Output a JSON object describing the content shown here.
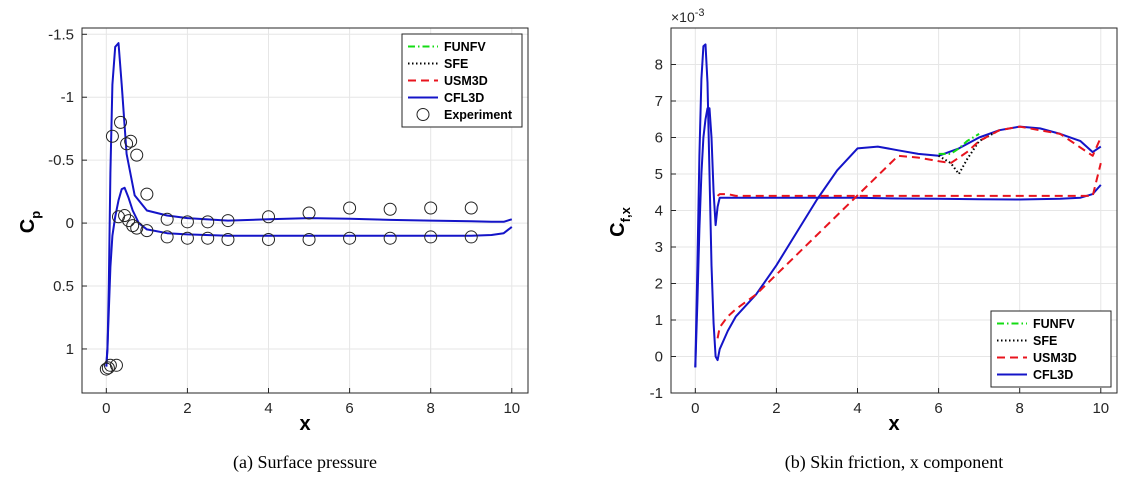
{
  "chart_data": [
    {
      "type": "line",
      "caption": "(a) Surface pressure",
      "xlabel": "x",
      "ylabel_main": "C",
      "ylabel_sub": "p",
      "xlim": [
        -0.6,
        10.4
      ],
      "ylim": [
        1.35,
        -1.55
      ],
      "y_reversed": true,
      "xticks": [
        0,
        2,
        4,
        6,
        8,
        10
      ],
      "xtick_labels": [
        "0",
        "2",
        "4",
        "6",
        "8",
        "10"
      ],
      "yticks": [
        -1.5,
        -1,
        -0.5,
        0,
        0.5,
        1
      ],
      "ytick_labels": [
        "-1.5",
        "-1",
        "-0.5",
        "0",
        "0.5",
        "1"
      ],
      "grid": true,
      "legend_position": "top-right",
      "legend": [
        "FUNFV",
        "SFE",
        "USM3D",
        "CFL3D",
        "Experiment"
      ],
      "series": [
        {
          "name": "CFL3D",
          "color": "#1414c8",
          "dash": "solid",
          "x": [
            0.0,
            0.03,
            0.06,
            0.1,
            0.15,
            0.22,
            0.3,
            0.38,
            0.5,
            0.7,
            1.0,
            1.5,
            2.0,
            3.0,
            4.0,
            5.0,
            6.0,
            7.0,
            8.0,
            9.0,
            9.5,
            9.8,
            10.0
          ],
          "y": [
            1.14,
            1.0,
            0.5,
            -0.4,
            -1.1,
            -1.4,
            -1.43,
            -1.1,
            -0.55,
            -0.22,
            -0.1,
            -0.06,
            -0.04,
            -0.02,
            -0.03,
            -0.04,
            -0.035,
            -0.025,
            -0.02,
            -0.015,
            -0.01,
            -0.01,
            -0.03
          ]
        },
        {
          "name": "CFL3D",
          "color": "#1414c8",
          "dash": "solid",
          "x": [
            0.0,
            0.03,
            0.06,
            0.1,
            0.15,
            0.22,
            0.3,
            0.38,
            0.45,
            0.55,
            0.65,
            0.8,
            1.0,
            1.5,
            2.0,
            3.0,
            4.0,
            5.0,
            6.0,
            7.0,
            8.0,
            9.0,
            9.5,
            9.8,
            10.0
          ],
          "y": [
            1.14,
            0.98,
            0.7,
            0.35,
            0.1,
            -0.05,
            -0.18,
            -0.27,
            -0.28,
            -0.2,
            -0.1,
            0.0,
            0.05,
            0.08,
            0.09,
            0.1,
            0.1,
            0.1,
            0.1,
            0.1,
            0.1,
            0.1,
            0.095,
            0.08,
            0.03
          ]
        }
      ],
      "experiment": {
        "name": "Experiment",
        "x": [
          0.0,
          0.05,
          0.15,
          0.25,
          0.35,
          0.5,
          0.6,
          0.75,
          1.0,
          1.5,
          2.0,
          2.5,
          3.0,
          4.0,
          5.0,
          6.0,
          7.0,
          8.0,
          9.0,
          0.1,
          0.3,
          0.45,
          0.55,
          0.65,
          0.75,
          1.0,
          1.5,
          2.0,
          2.5,
          3.0,
          4.0,
          5.0,
          6.0,
          7.0,
          8.0,
          9.0
        ],
        "y": [
          1.16,
          1.15,
          -0.69,
          1.13,
          -0.8,
          -0.63,
          -0.65,
          -0.54,
          -0.23,
          -0.03,
          -0.01,
          -0.01,
          -0.02,
          -0.05,
          -0.08,
          -0.12,
          -0.11,
          -0.12,
          -0.12,
          1.13,
          -0.05,
          -0.06,
          -0.02,
          0.02,
          0.04,
          0.06,
          0.11,
          0.12,
          0.12,
          0.13,
          0.13,
          0.13,
          0.12,
          0.12,
          0.11,
          0.11
        ]
      }
    },
    {
      "type": "line",
      "caption": "(b) Skin friction, x component",
      "xlabel": "x",
      "ylabel_main": "C",
      "ylabel_sub": "f,x",
      "multiplier": "×10",
      "multiplier_exp": "-3",
      "xlim": [
        -0.6,
        10.4
      ],
      "ylim": [
        -1,
        9
      ],
      "xticks": [
        0,
        2,
        4,
        6,
        8,
        10
      ],
      "xtick_labels": [
        "0",
        "2",
        "4",
        "6",
        "8",
        "10"
      ],
      "yticks": [
        -1,
        0,
        1,
        2,
        3,
        4,
        5,
        6,
        7,
        8
      ],
      "ytick_labels": [
        "-1",
        "0",
        "1",
        "2",
        "3",
        "4",
        "5",
        "6",
        "7",
        "8"
      ],
      "grid": true,
      "legend_position": "bottom-right",
      "legend": [
        "FUNFV",
        "SFE",
        "USM3D",
        "CFL3D"
      ],
      "series": [
        {
          "name": "CFL3D",
          "color": "#1414c8",
          "dash": "solid",
          "x": [
            0.0,
            0.05,
            0.1,
            0.15,
            0.2,
            0.25,
            0.3,
            0.35,
            0.4,
            0.45,
            0.5,
            0.55,
            0.6,
            0.8,
            1.0,
            1.5,
            2.0,
            2.5,
            3.0,
            3.5,
            4.0,
            4.5,
            5.0,
            5.5,
            6.0,
            6.5,
            7.0,
            7.5,
            8.0,
            8.5,
            9.0,
            9.5,
            9.8,
            10.0
          ],
          "y": [
            -0.3,
            2.5,
            5.5,
            7.6,
            8.5,
            8.55,
            7.5,
            5.0,
            2.5,
            0.9,
            0.0,
            -0.1,
            0.2,
            0.7,
            1.1,
            1.7,
            2.5,
            3.4,
            4.3,
            5.1,
            5.7,
            5.75,
            5.65,
            5.55,
            5.5,
            5.7,
            6.0,
            6.2,
            6.3,
            6.25,
            6.1,
            5.9,
            5.6,
            5.75
          ]
        },
        {
          "name": "CFL3D",
          "color": "#1414c8",
          "dash": "solid",
          "x": [
            0.0,
            0.05,
            0.1,
            0.15,
            0.2,
            0.25,
            0.3,
            0.35,
            0.4,
            0.45,
            0.5,
            0.55,
            0.6,
            0.8,
            1.0,
            2.0,
            3.0,
            4.0,
            5.0,
            6.0,
            7.0,
            8.0,
            9.0,
            9.5,
            9.8,
            10.0
          ],
          "y": [
            -0.3,
            1.5,
            3.5,
            5.0,
            6.0,
            6.5,
            6.8,
            6.8,
            6.0,
            4.5,
            3.6,
            4.1,
            4.35,
            4.35,
            4.35,
            4.35,
            4.35,
            4.35,
            4.33,
            4.32,
            4.31,
            4.3,
            4.32,
            4.35,
            4.45,
            4.7
          ]
        },
        {
          "name": "SFE",
          "color": "#000000",
          "dash": "dotted",
          "x": [
            6.0,
            6.3,
            6.5,
            6.7,
            7.0,
            7.5
          ],
          "y": [
            5.5,
            5.3,
            5.0,
            5.4,
            5.9,
            6.2
          ]
        },
        {
          "name": "USM3D",
          "color": "#e8141e",
          "dash": "dashed",
          "x": [
            0.55,
            0.6,
            0.8,
            1.0,
            1.5,
            5.0,
            5.5,
            6.0,
            6.3,
            6.5,
            6.7,
            7.0,
            7.5,
            8.0,
            9.0,
            9.8,
            10.0
          ],
          "y": [
            0.5,
            0.8,
            1.1,
            1.3,
            1.7,
            5.5,
            5.45,
            5.35,
            5.3,
            5.45,
            5.6,
            5.9,
            6.2,
            6.3,
            6.1,
            5.5,
            6.0
          ]
        },
        {
          "name": "USM3D",
          "color": "#e8141e",
          "dash": "dashed",
          "x": [
            0.55,
            0.6,
            0.8,
            1.0,
            9.8,
            10.0
          ],
          "y": [
            4.4,
            4.45,
            4.45,
            4.4,
            4.4,
            5.3
          ]
        },
        {
          "name": "FUNFV",
          "color": "#14dc14",
          "dash": "dashdot",
          "x": [
            6.0,
            6.3,
            6.5,
            6.7,
            7.0
          ],
          "y": [
            5.55,
            5.55,
            5.7,
            5.9,
            6.1
          ]
        }
      ]
    }
  ],
  "legend_styles": {
    "FUNFV": {
      "color": "#14dc14",
      "dash": "dashdot"
    },
    "SFE": {
      "color": "#000000",
      "dash": "dotted"
    },
    "USM3D": {
      "color": "#e8141e",
      "dash": "dashed"
    },
    "CFL3D": {
      "color": "#1414c8",
      "dash": "solid"
    },
    "Experiment": {
      "color": "#000000",
      "dash": "marker"
    }
  }
}
